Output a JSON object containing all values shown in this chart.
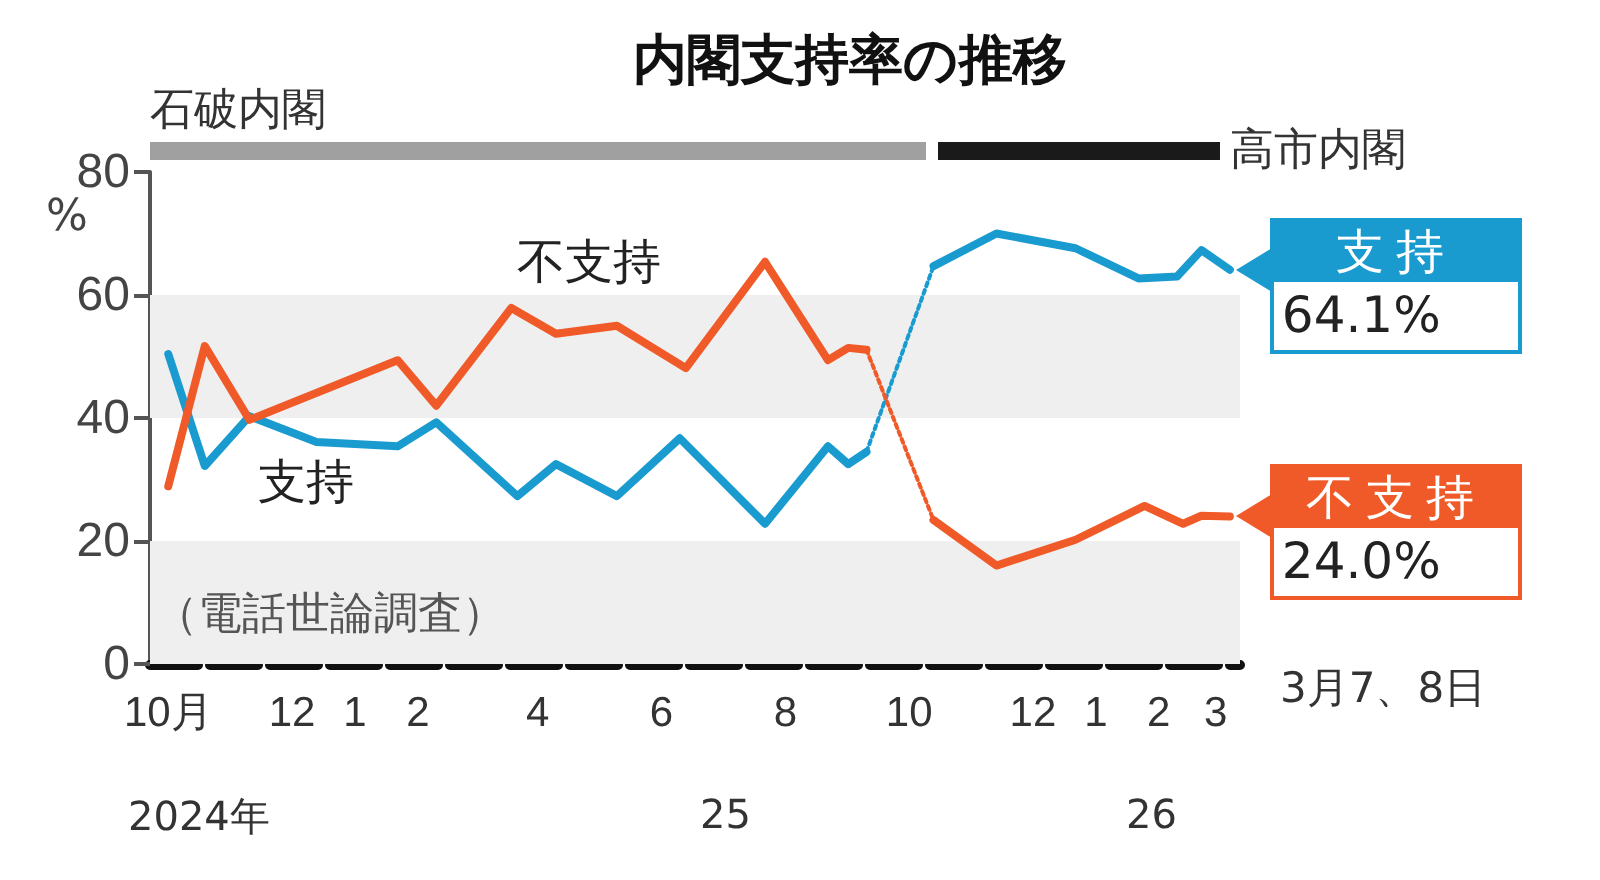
{
  "chart_data": {
    "type": "line",
    "title": "内閣支持率の推移",
    "ylabel": "%",
    "xlim": [
      "2024-09-22",
      "2026-03-13"
    ],
    "xticks": [
      {
        "value": "2024-10-01",
        "label": "10月"
      },
      {
        "value": "2024-12-01",
        "label": "12"
      },
      {
        "value": "2025-01-01",
        "label": "1"
      },
      {
        "value": "2025-02-01",
        "label": "2"
      },
      {
        "value": "2025-04-01",
        "label": "4"
      },
      {
        "value": "2025-06-01",
        "label": "6"
      },
      {
        "value": "2025-08-01",
        "label": "8"
      },
      {
        "value": "2025-10-01",
        "label": "10"
      },
      {
        "value": "2025-12-01",
        "label": "12"
      },
      {
        "value": "2026-01-01",
        "label": "1"
      },
      {
        "value": "2026-02-01",
        "label": "2"
      },
      {
        "value": "2026-03-01",
        "label": "3"
      }
    ],
    "ylim": [
      0,
      80
    ],
    "yticks": [
      0,
      20,
      40,
      60,
      80
    ],
    "series": [
      {
        "name": "支持",
        "color": "#1a9bd0",
        "x": [
          "2024-10-01",
          "2024-10-19",
          "2024-11-10",
          "2024-12-13",
          "2025-01-22",
          "2025-02-10",
          "2025-03-22",
          "2025-04-10",
          "2025-05-10",
          "2025-06-10",
          "2025-07-22",
          "2025-08-22",
          "2025-09-01",
          "2025-09-10"
        ],
        "values": [
          50.4,
          32.2,
          40.3,
          36.1,
          35.4,
          39.3,
          27.3,
          32.5,
          27.3,
          36.7,
          22.8,
          35.4,
          32.5,
          34.5
        ]
      },
      {
        "color": "#1a9bd0",
        "line_style": "dotted",
        "x": [
          "2025-09-10",
          "2025-10-13"
        ],
        "values": [
          34.5,
          64.7
        ]
      },
      {
        "color": "#1a9bd0",
        "x": [
          "2025-10-13",
          "2025-11-13",
          "2025-12-22",
          "2026-01-22",
          "2026-02-10",
          "2026-02-22",
          "2026-03-08"
        ],
        "values": [
          64.7,
          70.0,
          67.6,
          62.7,
          63.0,
          67.3,
          64.1
        ],
        "value_labels": [
          null,
          null,
          null,
          null,
          null,
          null,
          "64.1%"
        ]
      },
      {
        "name": "不支持",
        "color": "#f05a28",
        "x": [
          "2024-10-01",
          "2024-10-19",
          "2024-11-10",
          "2025-01-22",
          "2025-02-10",
          "2025-03-19",
          "2025-04-10",
          "2025-05-10",
          "2025-06-13",
          "2025-07-22",
          "2025-08-22",
          "2025-09-01",
          "2025-09-10"
        ],
        "values": [
          28.9,
          51.7,
          39.7,
          49.4,
          42.0,
          57.9,
          53.7,
          55.0,
          48.1,
          65.4,
          49.4,
          51.4,
          51.1
        ]
      },
      {
        "color": "#f05a28",
        "line_style": "dotted",
        "x": [
          "2025-09-10",
          "2025-10-13"
        ],
        "values": [
          51.1,
          23.4
        ]
      },
      {
        "color": "#f05a28",
        "x": [
          "2025-10-13",
          "2025-11-13",
          "2025-12-22",
          "2026-01-25",
          "2026-02-13",
          "2026-02-22",
          "2026-03-08"
        ],
        "values": [
          23.4,
          16.0,
          20.2,
          25.7,
          22.8,
          24.1,
          24.0
        ],
        "value_labels": [
          null,
          null,
          null,
          null,
          null,
          null,
          "24.0%"
        ]
      }
    ],
    "bands": [
      {
        "axis": "y",
        "from": 0,
        "to": 20,
        "color": "#efeff0"
      },
      {
        "axis": "y",
        "from": 40,
        "to": 60,
        "color": "#efeff0"
      }
    ],
    "annotations": [
      "（電話世論調査）",
      "3月7、8日",
      "2024年",
      "25",
      "26",
      "石破内閣",
      "高市内閣"
    ],
    "line_style": "solid",
    "marker": "none",
    "legend": "right",
    "grid": false
  }
}
